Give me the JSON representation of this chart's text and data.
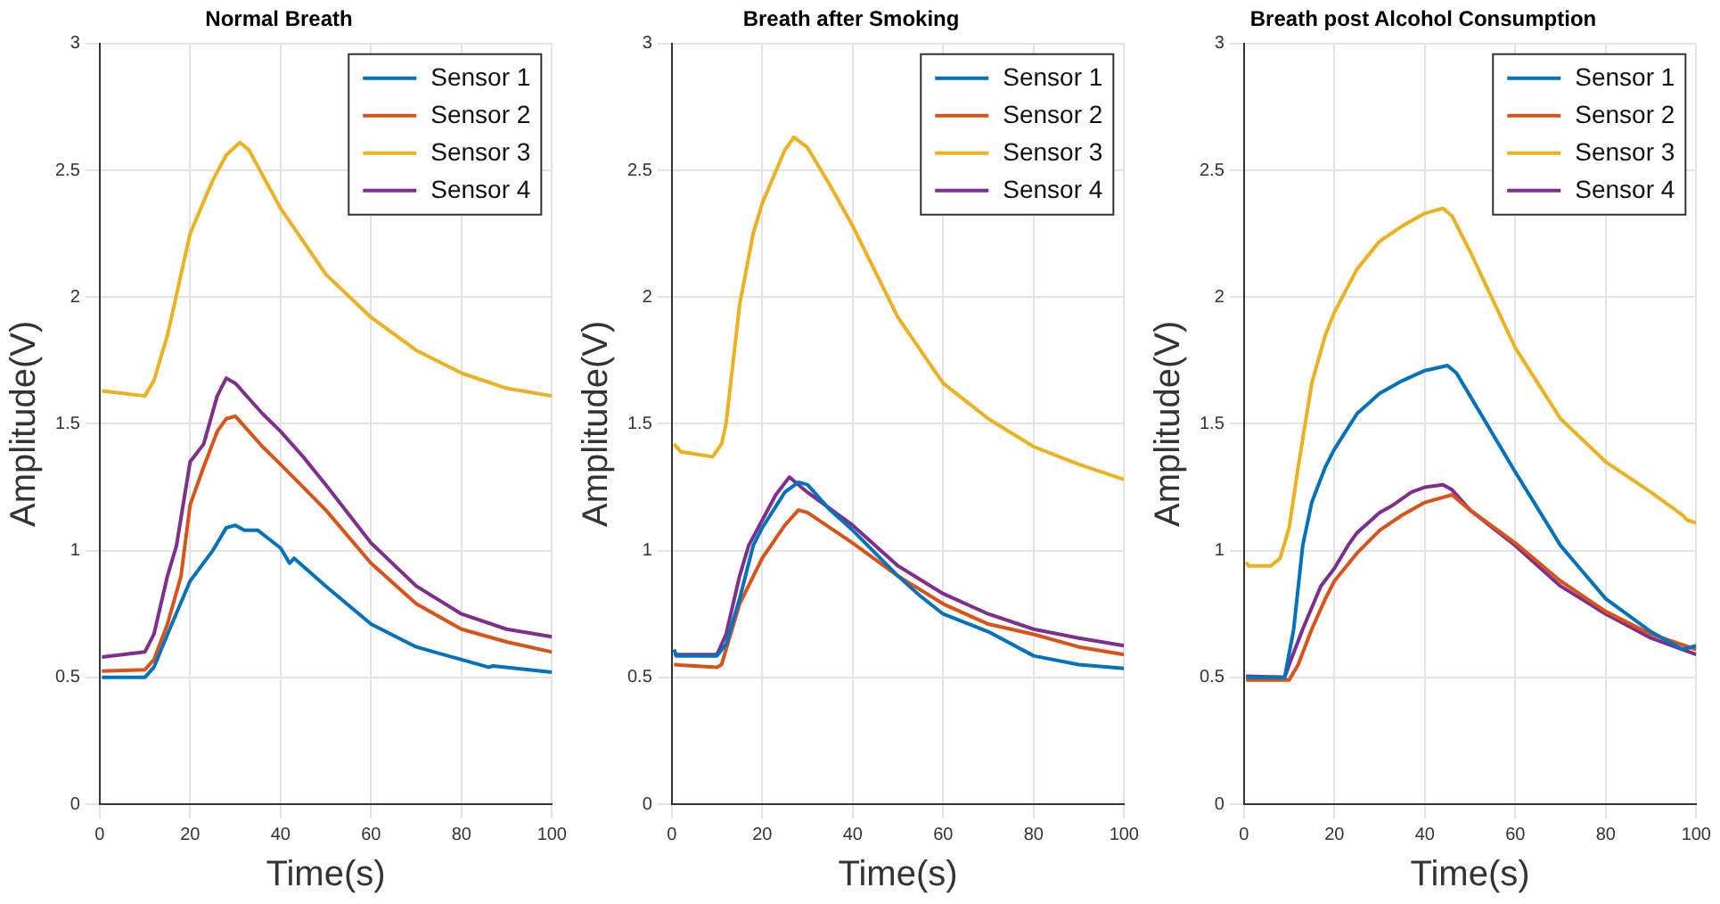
{
  "chart_data": [
    {
      "type": "line",
      "title": "Normal Breath",
      "xlabel": "Time(s)",
      "ylabel": "Amplitude(V)",
      "xlim": [
        0,
        100
      ],
      "xticks": [
        0,
        20,
        40,
        60,
        80,
        100
      ],
      "ylim": [
        0,
        3
      ],
      "yticks": [
        0,
        0.5,
        1,
        1.5,
        2,
        2.5,
        3
      ],
      "grid": true,
      "legend": "top right",
      "marker": "none",
      "line_style": "solid",
      "series": [
        {
          "name": "Sensor 1",
          "color": "#0072bd",
          "x": [
            0.5,
            10,
            12,
            15,
            20,
            25,
            28,
            30,
            32,
            35,
            40,
            42,
            43,
            50,
            60,
            70,
            80,
            86,
            87,
            100
          ],
          "values": [
            0.5,
            0.5,
            0.54,
            0.67,
            0.88,
            1.0,
            1.09,
            1.1,
            1.08,
            1.08,
            1.01,
            0.95,
            0.97,
            0.86,
            0.71,
            0.62,
            0.57,
            0.54,
            0.545,
            0.52
          ]
        },
        {
          "name": "Sensor 2",
          "color": "#d95319",
          "x": [
            0.5,
            10,
            12,
            15,
            18,
            20,
            23,
            26,
            28,
            30,
            33,
            36,
            40,
            50,
            60,
            70,
            80,
            90,
            100
          ],
          "values": [
            0.525,
            0.53,
            0.57,
            0.71,
            0.9,
            1.18,
            1.33,
            1.47,
            1.52,
            1.53,
            1.47,
            1.41,
            1.34,
            1.16,
            0.95,
            0.79,
            0.69,
            0.64,
            0.6
          ]
        },
        {
          "name": "Sensor 3",
          "color": "#edb120",
          "x": [
            0.5,
            10,
            12,
            15,
            20,
            25,
            28,
            31,
            33,
            40,
            50,
            60,
            70,
            80,
            90,
            100
          ],
          "values": [
            1.63,
            1.61,
            1.67,
            1.85,
            2.25,
            2.46,
            2.56,
            2.61,
            2.58,
            2.35,
            2.09,
            1.92,
            1.79,
            1.7,
            1.64,
            1.61
          ]
        },
        {
          "name": "Sensor 4",
          "color": "#7e2f8e",
          "x": [
            0.5,
            10,
            12,
            15,
            17,
            20,
            23,
            26,
            28,
            30,
            33,
            36,
            40,
            45,
            50,
            60,
            70,
            80,
            90,
            100
          ],
          "values": [
            0.58,
            0.6,
            0.67,
            0.9,
            1.02,
            1.35,
            1.42,
            1.61,
            1.68,
            1.66,
            1.6,
            1.54,
            1.47,
            1.37,
            1.26,
            1.03,
            0.86,
            0.75,
            0.69,
            0.66
          ]
        }
      ]
    },
    {
      "type": "line",
      "title": "Breath after Smoking",
      "xlabel": "Time(s)",
      "ylabel": "Amplitude(V)",
      "xlim": [
        0,
        100
      ],
      "xticks": [
        0,
        20,
        40,
        60,
        80,
        100
      ],
      "ylim": [
        0,
        3
      ],
      "yticks": [
        0,
        0.5,
        1,
        1.5,
        2,
        2.5,
        3
      ],
      "grid": true,
      "legend": "top right",
      "marker": "none",
      "line_style": "solid",
      "series": [
        {
          "name": "Sensor 1",
          "color": "#0072bd",
          "x": [
            0.5,
            1,
            10,
            12,
            15,
            18,
            20,
            25,
            28,
            30,
            35,
            40,
            50,
            55,
            60,
            70,
            80,
            90,
            100
          ],
          "values": [
            0.61,
            0.585,
            0.585,
            0.63,
            0.81,
            1.02,
            1.09,
            1.23,
            1.27,
            1.26,
            1.16,
            1.08,
            0.9,
            0.82,
            0.75,
            0.68,
            0.585,
            0.55,
            0.535
          ]
        },
        {
          "name": "Sensor 2",
          "color": "#d95319",
          "x": [
            0.5,
            10,
            11,
            15,
            20,
            25,
            28,
            30,
            40,
            50,
            60,
            70,
            80,
            90,
            100
          ],
          "values": [
            0.55,
            0.54,
            0.55,
            0.79,
            0.97,
            1.1,
            1.16,
            1.15,
            1.03,
            0.9,
            0.79,
            0.71,
            0.67,
            0.62,
            0.59
          ]
        },
        {
          "name": "Sensor 3",
          "color": "#edb120",
          "x": [
            0.5,
            2,
            9,
            11,
            12,
            15,
            18,
            20,
            25,
            27,
            30,
            35,
            40,
            50,
            60,
            70,
            80,
            90,
            100
          ],
          "values": [
            1.42,
            1.39,
            1.37,
            1.42,
            1.5,
            1.97,
            2.25,
            2.37,
            2.58,
            2.63,
            2.59,
            2.44,
            2.28,
            1.92,
            1.66,
            1.52,
            1.41,
            1.34,
            1.28
          ]
        },
        {
          "name": "Sensor 4",
          "color": "#7e2f8e",
          "x": [
            0.5,
            10,
            12,
            15,
            17,
            20,
            23,
            26,
            28,
            30,
            40,
            50,
            60,
            70,
            80,
            90,
            100
          ],
          "values": [
            0.59,
            0.59,
            0.67,
            0.9,
            1.02,
            1.12,
            1.22,
            1.29,
            1.26,
            1.23,
            1.1,
            0.94,
            0.83,
            0.75,
            0.69,
            0.655,
            0.625
          ]
        }
      ]
    },
    {
      "type": "line",
      "title": "Breath post Alcohol Consumption",
      "xlabel": "Time(s)",
      "ylabel": "Amplitude(V)",
      "xlim": [
        0,
        100
      ],
      "xticks": [
        0,
        20,
        40,
        60,
        80,
        100
      ],
      "ylim": [
        0,
        3
      ],
      "yticks": [
        0,
        0.5,
        1,
        1.5,
        2,
        2.5,
        3
      ],
      "grid": true,
      "legend": "top right",
      "marker": "none",
      "line_style": "solid",
      "series": [
        {
          "name": "Sensor 1",
          "color": "#0072bd",
          "x": [
            0.5,
            9,
            11,
            13,
            15,
            18,
            20,
            25,
            30,
            35,
            40,
            45,
            47,
            50,
            55,
            60,
            70,
            80,
            90,
            97,
            100
          ],
          "values": [
            0.5,
            0.5,
            0.69,
            1.02,
            1.19,
            1.33,
            1.4,
            1.54,
            1.62,
            1.67,
            1.71,
            1.73,
            1.7,
            1.61,
            1.46,
            1.31,
            1.02,
            0.81,
            0.68,
            0.61,
            0.625
          ]
        },
        {
          "name": "Sensor 2",
          "color": "#d95319",
          "x": [
            0.5,
            10,
            12,
            15,
            18,
            20,
            25,
            30,
            35,
            40,
            46,
            50,
            60,
            70,
            80,
            90,
            100
          ],
          "values": [
            0.49,
            0.49,
            0.55,
            0.69,
            0.81,
            0.88,
            0.99,
            1.08,
            1.14,
            1.19,
            1.22,
            1.16,
            1.03,
            0.88,
            0.76,
            0.67,
            0.61
          ]
        },
        {
          "name": "Sensor 3",
          "color": "#edb120",
          "x": [
            0.5,
            1,
            6,
            8,
            10,
            12,
            15,
            18,
            20,
            25,
            30,
            35,
            40,
            44,
            46,
            50,
            55,
            60,
            70,
            80,
            90,
            97,
            98,
            100
          ],
          "values": [
            0.955,
            0.94,
            0.94,
            0.97,
            1.09,
            1.33,
            1.66,
            1.85,
            1.94,
            2.11,
            2.22,
            2.28,
            2.33,
            2.35,
            2.32,
            2.18,
            1.99,
            1.8,
            1.52,
            1.35,
            1.23,
            1.14,
            1.12,
            1.11
          ]
        },
        {
          "name": "Sensor 4",
          "color": "#7e2f8e",
          "x": [
            0.5,
            9,
            10,
            13,
            17,
            20,
            23,
            25,
            30,
            33,
            37,
            40,
            44,
            46,
            50,
            60,
            70,
            80,
            90,
            100
          ],
          "values": [
            0.505,
            0.5,
            0.55,
            0.69,
            0.86,
            0.93,
            1.02,
            1.07,
            1.15,
            1.18,
            1.23,
            1.25,
            1.26,
            1.24,
            1.16,
            1.02,
            0.86,
            0.75,
            0.655,
            0.59
          ]
        }
      ]
    }
  ]
}
